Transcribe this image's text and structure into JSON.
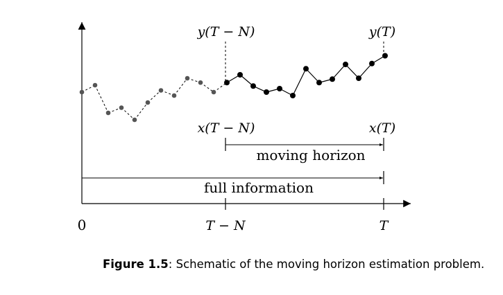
{
  "labels": {
    "y_start": "y(T − N)",
    "y_end": "y(T)",
    "x_start": "x(T − N)",
    "x_end": "x(T)",
    "moving_horizon": "moving horizon",
    "full_information": "full information",
    "tick_zero": "0",
    "tick_t_minus_n": "T − N",
    "tick_t": "T"
  },
  "caption": {
    "label": "Figure 1.5",
    "text": ": Schematic of the moving horizon estimation problem."
  },
  "series": {
    "past_color": "#555555",
    "window_color": "#000000",
    "values": [
      0.0,
      0.4,
      -1.2,
      -0.9,
      -1.6,
      -0.6,
      0.1,
      -0.2,
      0.8,
      0.55,
      0.0,
      0.55,
      1.0,
      0.35,
      0.0,
      0.2,
      -0.2,
      1.35,
      0.55,
      0.75,
      1.6,
      0.8,
      1.65,
      2.1
    ],
    "window_start_index": 11
  }
}
